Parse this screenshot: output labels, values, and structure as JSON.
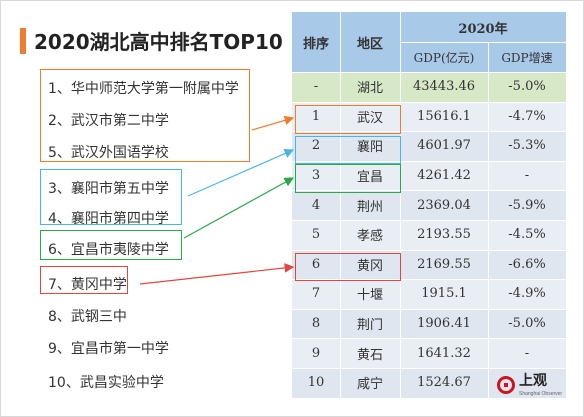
{
  "title": "2020湖北高中排名TOP10",
  "schools": [
    "1、华中师范大学第一附属中学",
    "2、武汉市第二中学",
    "5、武汉外国语学校",
    "3、襄阳市第五中学",
    "4、襄阳市第四中学",
    "6、宜昌市夷陵中学",
    "7、黄冈中学",
    "8、武钢三中",
    "9、宜昌市第一中学",
    "10、武昌实验中学"
  ],
  "table": {
    "year_header": "2020年",
    "rank_header": "排序",
    "region_header": "地区",
    "gdp_header": "GDP(亿元)",
    "growth_header": "GDP增速"
  },
  "chart_data": {
    "type": "table",
    "columns": [
      "排序",
      "地区",
      "GDP(亿元)",
      "GDP增速"
    ],
    "rows": [
      [
        "-",
        "湖北",
        "43443.46",
        "-5.0%"
      ],
      [
        "1",
        "武汉",
        "15616.1",
        "-4.7%"
      ],
      [
        "2",
        "襄阳",
        "4601.97",
        "-5.3%"
      ],
      [
        "3",
        "宜昌",
        "4261.42",
        "-"
      ],
      [
        "4",
        "荆州",
        "2369.04",
        "-5.9%"
      ],
      [
        "5",
        "孝感",
        "2193.55",
        "-4.5%"
      ],
      [
        "6",
        "黄冈",
        "2169.55",
        "-6.6%"
      ],
      [
        "7",
        "十堰",
        "1915.1",
        "-4.9%"
      ],
      [
        "8",
        "荆门",
        "1906.41",
        "-5.0%"
      ],
      [
        "9",
        "黄石",
        "1641.32",
        "-"
      ],
      [
        "10",
        "咸宁",
        "1524.67",
        ""
      ]
    ]
  },
  "colors": {
    "accent": "#ef7d2f",
    "header": "#a9c9e8",
    "row_odd": "#e9eef5",
    "row_even": "#dfe6ef",
    "row_hubei": "#d6e8c6",
    "orange": "#ef7d2f",
    "blue": "#4bb4e6",
    "green": "#2ba84a",
    "red": "#e2463f"
  },
  "logo": {
    "text": "上观",
    "sub": "Shanghai Observer"
  }
}
